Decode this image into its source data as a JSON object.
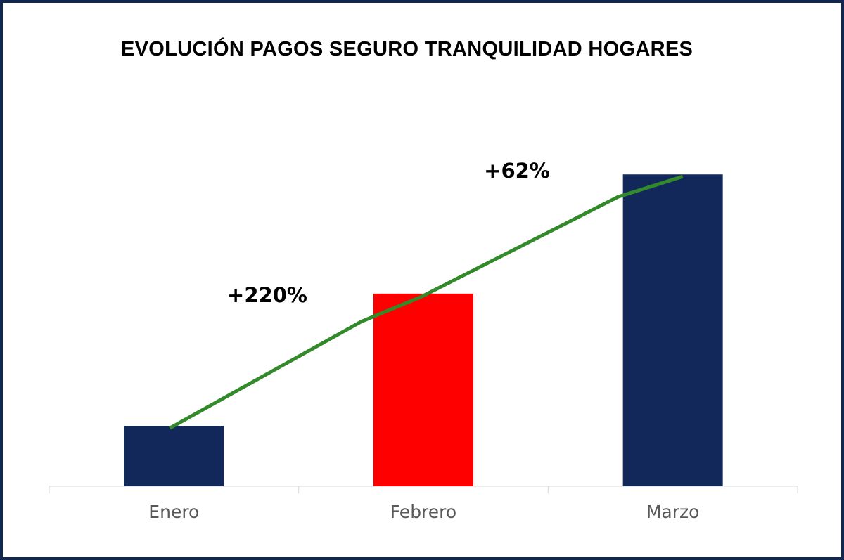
{
  "chart_data": {
    "type": "bar",
    "title": "EVOLUCIÓN PAGOS SEGURO TRANQUILIDAD HOGARES",
    "xlabel": "",
    "ylabel": "",
    "categories": [
      "Enero",
      "Febrero",
      "Marzo"
    ],
    "values": [
      1,
      3.2,
      5.18
    ],
    "bar_colors": [
      "#13285a",
      "#ff0000",
      "#13285a"
    ],
    "line_color": "#338a2a",
    "frame_color": "#12274f",
    "ylim": [
      0,
      6
    ],
    "grid": false,
    "annotations": [
      {
        "text": "+220%",
        "between": [
          "Enero",
          "Febrero"
        ]
      },
      {
        "text": "+62%",
        "between": [
          "Febrero",
          "Marzo"
        ]
      }
    ]
  }
}
